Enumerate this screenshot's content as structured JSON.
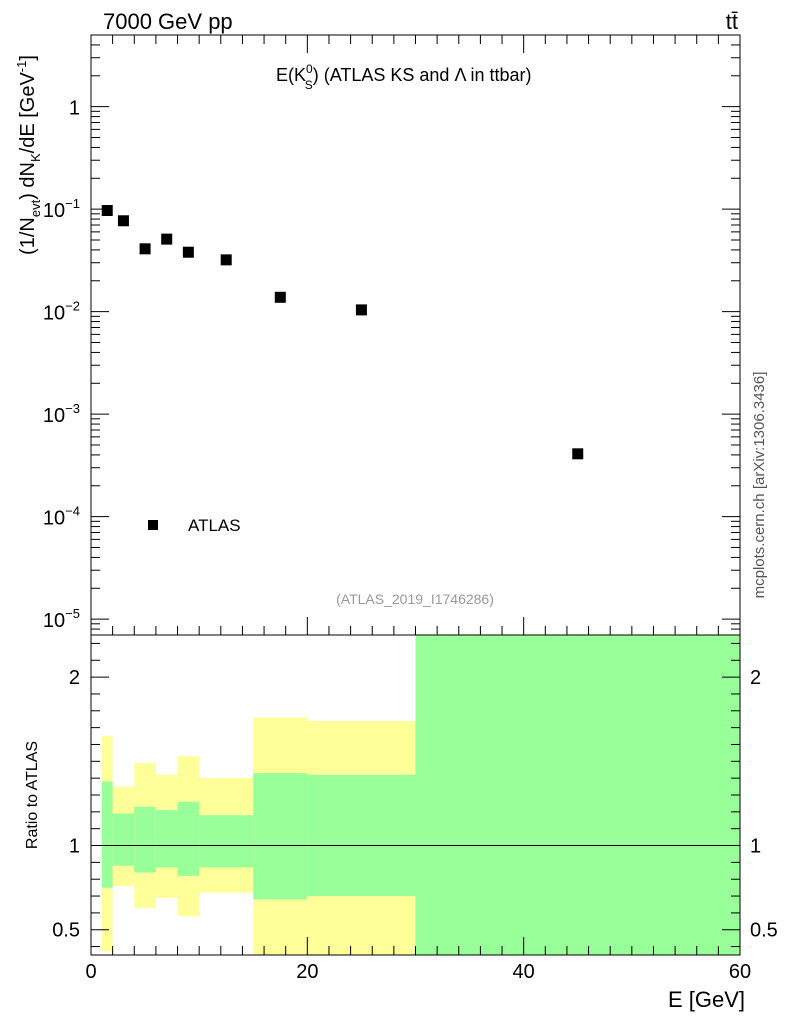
{
  "header": {
    "left": "7000 GeV pp",
    "right": "tt̄"
  },
  "side_label": "mcplots.cern.ch [arXiv:1306.3436]",
  "chart_data": [
    {
      "type": "scatter",
      "title": "E(K_S^0) (ATLAS KS and Λ in ttbar)",
      "title_parts": {
        "main": "E(K",
        "sup": "0",
        "sub": "S",
        "close": ") (ATLAS KS and Λ in ttbar)"
      },
      "watermark": "(ATLAS_2019_I1746286)",
      "ylabel_parts": {
        "a": "(1/N",
        "a_sub": "evt",
        "b": ") dN",
        "b_sub": "K",
        "c": "/dE [GeV",
        "c_sup": "-1",
        "d": "]"
      },
      "yscale": "log",
      "ylim": [
        7e-06,
        5
      ],
      "xlim": [
        0,
        60
      ],
      "y_ticks": [
        {
          "v": 1,
          "base": "1",
          "exp": ""
        },
        {
          "v": 0.1,
          "base": "10",
          "exp": "−1"
        },
        {
          "v": 0.01,
          "base": "10",
          "exp": "−2"
        },
        {
          "v": 0.001,
          "base": "10",
          "exp": "−3"
        },
        {
          "v": 0.0001,
          "base": "10",
          "exp": "−4"
        },
        {
          "v": 1e-05,
          "base": "10",
          "exp": "−5"
        }
      ],
      "series": [
        {
          "name": "ATLAS",
          "color": "#000000",
          "points": [
            {
              "x": 1.5,
              "y": 0.097
            },
            {
              "x": 3.0,
              "y": 0.077
            },
            {
              "x": 5.0,
              "y": 0.041
            },
            {
              "x": 7.0,
              "y": 0.051
            },
            {
              "x": 9.0,
              "y": 0.038
            },
            {
              "x": 12.5,
              "y": 0.032
            },
            {
              "x": 17.5,
              "y": 0.0138
            },
            {
              "x": 25.0,
              "y": 0.0104
            },
            {
              "x": 45.0,
              "y": 0.00041
            }
          ]
        }
      ],
      "legend": {
        "label": "ATLAS",
        "placement": "bottom-left"
      }
    },
    {
      "type": "area",
      "ylabel": "Ratio to ATLAS",
      "xlabel": "E [GeV]",
      "xlim": [
        0,
        60
      ],
      "ylim": [
        0.35,
        2.25
      ],
      "x_ticks": [
        0,
        20,
        40,
        60
      ],
      "y_ticks": [
        0.5,
        1,
        2
      ],
      "y_tick_labels": [
        "0.5",
        "1",
        "2"
      ],
      "reference_line": 1,
      "band_colors": {
        "outer": "#ffff99",
        "inner": "#99ff99"
      },
      "bands": [
        {
          "x0": 1,
          "x1": 2,
          "inner_lo": 0.75,
          "inner_hi": 1.38,
          "outer_lo": 0.37,
          "outer_hi": 1.65
        },
        {
          "x0": 2,
          "x1": 4,
          "inner_lo": 0.88,
          "inner_hi": 1.19,
          "outer_lo": 0.76,
          "outer_hi": 1.35
        },
        {
          "x0": 4,
          "x1": 6,
          "inner_lo": 0.84,
          "inner_hi": 1.23,
          "outer_lo": 0.63,
          "outer_hi": 1.49
        },
        {
          "x0": 6,
          "x1": 8,
          "inner_lo": 0.87,
          "inner_hi": 1.21,
          "outer_lo": 0.69,
          "outer_hi": 1.42
        },
        {
          "x0": 8,
          "x1": 10,
          "inner_lo": 0.82,
          "inner_hi": 1.26,
          "outer_lo": 0.58,
          "outer_hi": 1.53
        },
        {
          "x0": 10,
          "x1": 15,
          "inner_lo": 0.87,
          "inner_hi": 1.18,
          "outer_lo": 0.72,
          "outer_hi": 1.4
        },
        {
          "x0": 15,
          "x1": 20,
          "inner_lo": 0.68,
          "inner_hi": 1.43,
          "outer_lo": 0.35,
          "outer_hi": 1.76
        },
        {
          "x0": 20,
          "x1": 30,
          "inner_lo": 0.7,
          "inner_hi": 1.42,
          "outer_lo": 0.35,
          "outer_hi": 1.74
        },
        {
          "x0": 30,
          "x1": 60,
          "inner_lo": 0.35,
          "inner_hi": 2.25,
          "outer_lo": 0.35,
          "outer_hi": 2.25
        }
      ]
    }
  ]
}
